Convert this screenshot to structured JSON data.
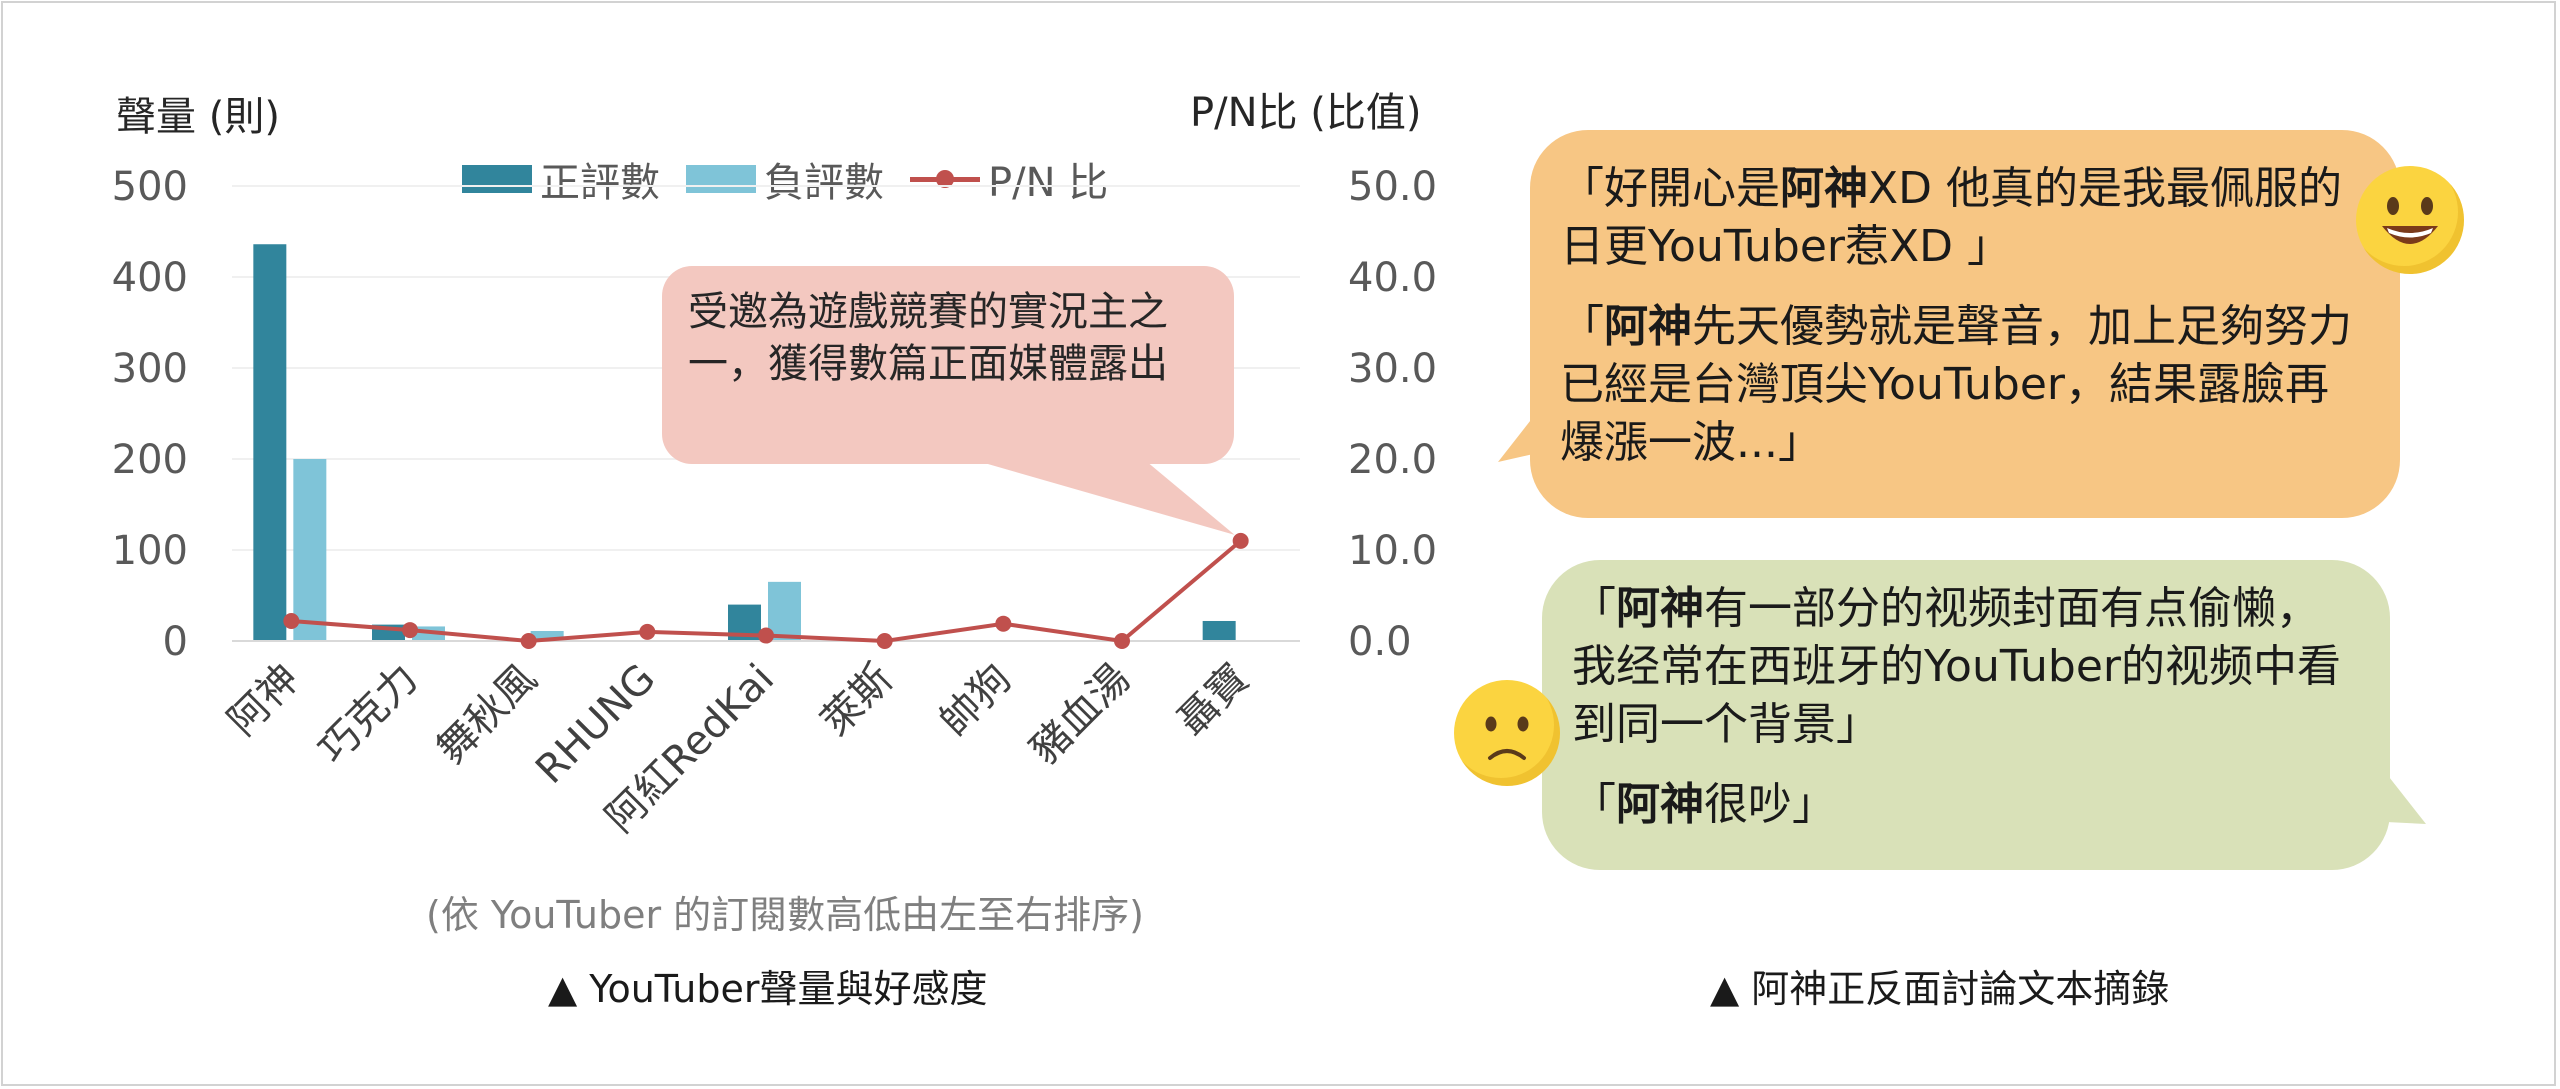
{
  "chart_data": {
    "type": "bar",
    "categories": [
      "阿神",
      "巧克力",
      "舞秋風",
      "RHUNG",
      "阿紅RedKai",
      "萊斯",
      "帥狗",
      "豬血湯",
      "聶寶"
    ],
    "series": [
      {
        "name": "正評數",
        "type": "bar",
        "axis": "left",
        "color": "#31859c",
        "values": [
          436,
          18,
          0,
          0,
          40,
          0,
          0,
          0,
          22
        ]
      },
      {
        "name": "負評數",
        "type": "bar",
        "axis": "left",
        "color": "#7fc4d8",
        "values": [
          200,
          16,
          11,
          0,
          65,
          0,
          0,
          0,
          0
        ]
      },
      {
        "name": "P/N 比",
        "type": "line",
        "axis": "right",
        "color": "#c0504d",
        "values": [
          2.2,
          1.2,
          0.0,
          1.0,
          0.6,
          0.0,
          1.9,
          0.0,
          11.0
        ]
      }
    ],
    "ylabel": "聲量 (則)",
    "y2label": "P/N比 (比值)",
    "ylim": [
      0,
      500
    ],
    "y2lim": [
      0,
      50
    ],
    "yticks": [
      "0",
      "100",
      "200",
      "300",
      "400",
      "500"
    ],
    "y2ticks": [
      "0.0",
      "10.0",
      "20.0",
      "30.0",
      "40.0",
      "50.0"
    ],
    "grid": true,
    "legend_position": "top",
    "annotation": "受邀為遊戲競賽的實況主之一，獲得數篇正面媒體露出",
    "subnote": "(依 YouTuber 的訂閱數高低由左至右排序)",
    "caption": "▲ YouTuber聲量與好感度"
  },
  "quotes_panel": {
    "positive": [
      {
        "pre": "「好開心是",
        "bold": "阿神",
        "post": "XD 他真的是我最佩服的日更YouTuber惹XD 」"
      },
      {
        "pre": "「",
        "bold": "阿神",
        "post": "先天優勢就是聲音，加上足夠努力已經是台灣頂尖YouTuber，結果露臉再爆漲一波...」"
      }
    ],
    "negative": [
      {
        "pre": "「",
        "bold": "阿神",
        "post": "有一部分的视频封面有点偷懒，我经常在西班牙的YouTuber的视频中看到同一个背景」"
      },
      {
        "pre": "「",
        "bold": "阿神",
        "post": "很吵」"
      }
    ],
    "positive_icon": "smiling-face-icon",
    "negative_icon": "frowning-face-icon",
    "caption": "▲ 阿神正反面討論文本摘錄"
  },
  "colors": {
    "positive_bubble": "#f7c684",
    "negative_bubble": "#d9e1b8",
    "annotation_bubble": "#f3c8c0"
  }
}
